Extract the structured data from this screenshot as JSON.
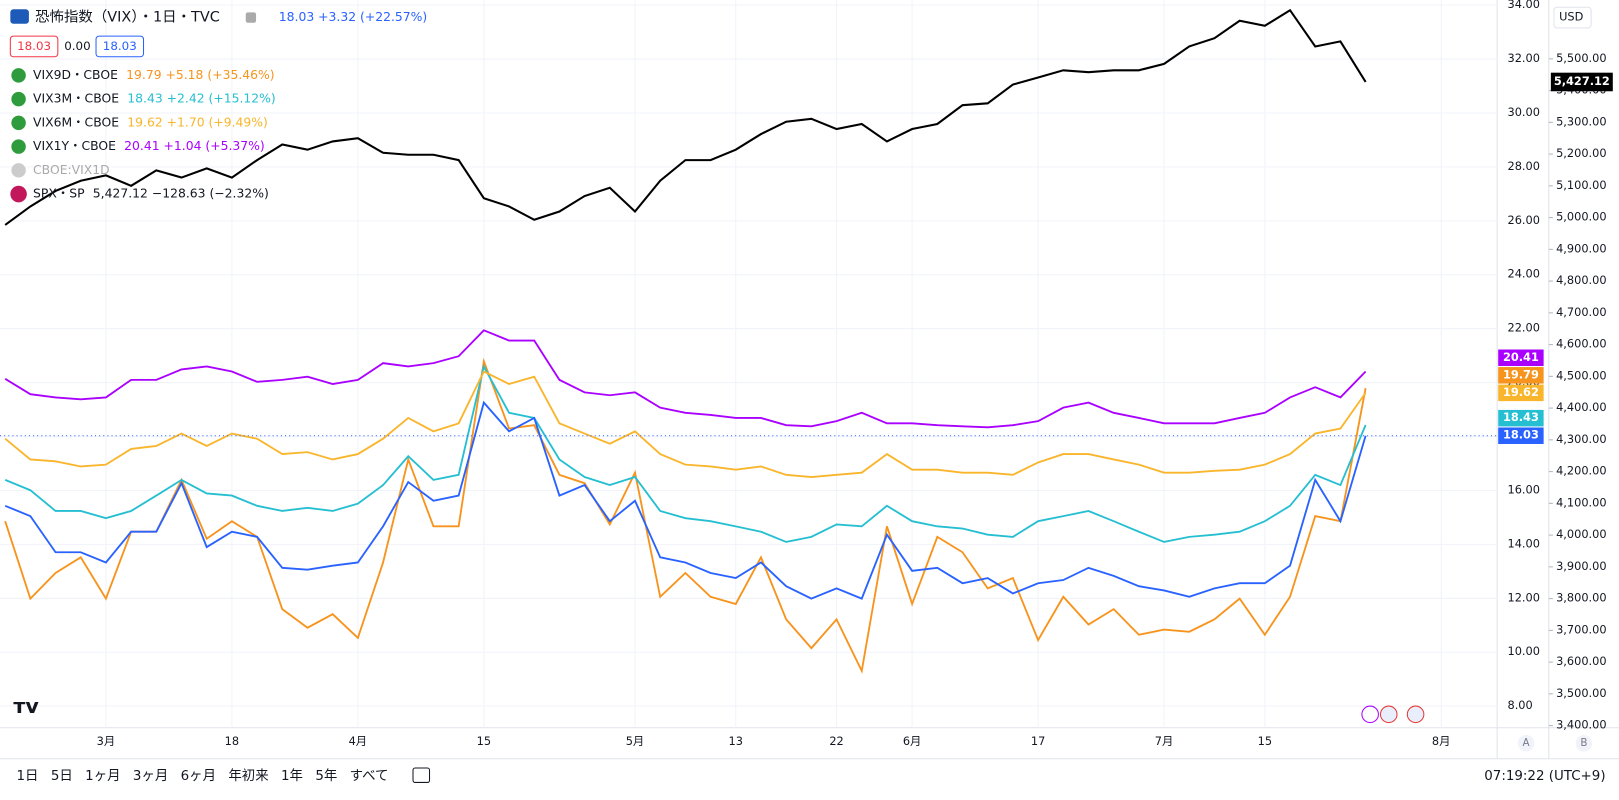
{
  "chart_data": {
    "type": "line",
    "categories": [
      null,
      null,
      null,
      null,
      "3月",
      null,
      null,
      null,
      null,
      "18",
      null,
      null,
      null,
      null,
      "4月",
      null,
      null,
      null,
      null,
      "15",
      null,
      null,
      null,
      null,
      null,
      "5月",
      null,
      null,
      null,
      "13",
      null,
      null,
      null,
      "22",
      null,
      null,
      "6月",
      null,
      null,
      null,
      null,
      "17",
      null,
      null,
      null,
      null,
      "7月",
      null,
      null,
      null,
      "15",
      null,
      null,
      null,
      null,
      null,
      null,
      "8月"
    ],
    "series": [
      {
        "name": "VIX9D・CBOE",
        "quote": "19.79 +5.18 (+35.46%)",
        "color": "#f7941d",
        "values": [
          14.86,
          11.99,
          12.94,
          13.52,
          11.99,
          14.47,
          14.47,
          16.39,
          14.21,
          14.86,
          14.28,
          11.6,
          10.91,
          11.41,
          10.53,
          13.33,
          17.15,
          14.67,
          14.67,
          20.79,
          18.3,
          18.42,
          16.58,
          16.27,
          14.74,
          16.66,
          12.06,
          12.94,
          12.06,
          11.79,
          13.52,
          11.22,
          10.15,
          11.22,
          9.31,
          14.67,
          11.79,
          14.28,
          13.71,
          12.37,
          12.75,
          10.45,
          12.06,
          11.03,
          11.6,
          10.65,
          10.84,
          10.76,
          11.22,
          11.99,
          10.65,
          12.06,
          15.05,
          14.86,
          19.79,
          null,
          null,
          null
        ]
      },
      {
        "name": "VIX3M・CBOE",
        "quote": "18.43 +2.42 (+15.12%)",
        "color": "#26bfd2",
        "values": [
          16.39,
          16.01,
          15.24,
          15.24,
          14.97,
          15.24,
          15.81,
          16.39,
          15.89,
          15.81,
          15.43,
          15.24,
          15.36,
          15.24,
          15.51,
          16.2,
          17.27,
          16.39,
          16.58,
          20.6,
          18.88,
          18.69,
          17.15,
          16.5,
          16.2,
          16.5,
          15.24,
          14.97,
          14.86,
          14.67,
          14.47,
          14.09,
          14.28,
          14.74,
          14.67,
          15.43,
          14.86,
          14.67,
          14.59,
          14.36,
          14.28,
          14.86,
          15.05,
          15.24,
          14.86,
          14.47,
          14.09,
          14.28,
          14.36,
          14.47,
          14.86,
          15.43,
          16.58,
          16.2,
          18.43,
          null,
          null,
          null
        ]
      },
      {
        "name": "VIX6M・CBOE",
        "quote": "19.62 +1.70 (+9.49%)",
        "color": "#f9b52c",
        "values": [
          17.92,
          17.15,
          17.08,
          16.89,
          16.96,
          17.54,
          17.65,
          18.11,
          17.65,
          18.11,
          17.92,
          17.35,
          17.42,
          17.15,
          17.35,
          17.92,
          18.69,
          18.19,
          18.49,
          20.41,
          19.95,
          20.22,
          18.49,
          18.11,
          17.73,
          18.19,
          17.35,
          16.96,
          16.89,
          16.77,
          16.89,
          16.58,
          16.5,
          16.58,
          16.66,
          17.35,
          16.77,
          16.77,
          16.66,
          16.66,
          16.58,
          17.04,
          17.35,
          17.35,
          17.15,
          16.96,
          16.66,
          16.66,
          16.73,
          16.77,
          16.96,
          17.35,
          18.11,
          18.3,
          19.62,
          null,
          null,
          null
        ]
      },
      {
        "name": "VIX1Y・CBOE",
        "quote": "20.41 +1.04 (+5.37%)",
        "color": "#aa00ff",
        "values": [
          20.14,
          19.57,
          19.45,
          19.38,
          19.45,
          20.1,
          20.1,
          20.49,
          20.6,
          20.41,
          20.03,
          20.1,
          20.22,
          19.95,
          20.1,
          20.72,
          20.6,
          20.72,
          20.98,
          21.94,
          21.56,
          21.56,
          20.1,
          19.64,
          19.53,
          19.64,
          19.07,
          18.88,
          18.8,
          18.69,
          18.69,
          18.42,
          18.38,
          18.57,
          18.88,
          18.49,
          18.49,
          18.42,
          18.38,
          18.34,
          18.42,
          18.57,
          19.07,
          19.26,
          18.88,
          18.69,
          18.49,
          18.49,
          18.49,
          18.69,
          18.88,
          19.45,
          19.83,
          19.45,
          20.41,
          null,
          null,
          null
        ]
      },
      {
        "name": "恐怖指数（VIX）・1日・TVC",
        "quote": "18.03 +3.32 (+22.57%)",
        "color": "#2962ff",
        "values": [
          15.43,
          15.05,
          13.71,
          13.71,
          13.33,
          14.47,
          14.47,
          16.27,
          13.9,
          14.47,
          14.28,
          13.13,
          13.06,
          13.21,
          13.33,
          14.67,
          16.31,
          15.62,
          15.81,
          19.26,
          18.19,
          18.69,
          15.81,
          16.2,
          14.86,
          15.62,
          13.52,
          13.33,
          12.94,
          12.75,
          13.33,
          12.45,
          11.99,
          12.37,
          11.99,
          14.36,
          13.02,
          13.13,
          12.56,
          12.75,
          12.18,
          12.56,
          12.68,
          13.13,
          12.83,
          12.45,
          12.29,
          12.06,
          12.37,
          12.56,
          12.56,
          13.21,
          16.39,
          14.86,
          18.03,
          null,
          null,
          null
        ]
      },
      {
        "name": "SPX・SP",
        "quote": "5,427.12 −128.63 (−2.32%)",
        "color": "#000000",
        "axis": "y2",
        "values": [
          4977,
          5035,
          5084,
          5116,
          5133,
          5100,
          5149,
          5126,
          5155,
          5126,
          5181,
          5230,
          5214,
          5240,
          5250,
          5204,
          5198,
          5198,
          5181,
          5061,
          5035,
          4993,
          5019,
          5068,
          5094,
          5019,
          5116,
          5181,
          5181,
          5214,
          5263,
          5302,
          5311,
          5279,
          5295,
          5240,
          5279,
          5295,
          5354,
          5360,
          5419,
          5441,
          5464,
          5458,
          5464,
          5464,
          5484,
          5539,
          5565,
          5620,
          5604,
          5653,
          5539,
          5555,
          5427.12,
          null,
          null,
          null
        ],
        "value_labels": [
          null,
          null,
          null,
          null,
          null,
          null,
          null,
          null,
          null,
          null,
          null,
          null,
          null,
          null,
          null,
          null,
          null,
          null,
          null,
          null,
          null,
          null,
          null,
          null,
          null,
          null,
          null,
          null,
          null,
          null,
          null,
          null,
          null,
          null,
          null,
          null,
          null,
          null,
          null,
          null,
          null,
          null,
          null,
          null,
          null,
          null,
          null,
          null,
          null,
          null,
          null,
          null,
          null,
          null,
          "5,427.12",
          null,
          null,
          null
        ]
      }
    ],
    "hidden_series": "CBOE:VIX1D",
    "price_boxes": {
      "sell": 18.03,
      "spread": "0.00",
      "buy": 18.03
    },
    "ylim": [
      7.2,
      34.19
    ],
    "yticks": [
      {
        "value": 8,
        "label": "8.00"
      },
      {
        "value": 10,
        "label": "10.00"
      },
      {
        "value": 12,
        "label": "12.00"
      },
      {
        "value": 14,
        "label": "14.00"
      },
      {
        "value": 16,
        "label": "16.00"
      },
      {
        "value": 18,
        "label": "18.00"
      },
      {
        "value": 20,
        "label": "20.00"
      },
      {
        "value": 22,
        "label": "22.00"
      },
      {
        "value": 24,
        "label": "24.00"
      },
      {
        "value": 26,
        "label": "26.00"
      },
      {
        "value": 28,
        "label": "28.00"
      },
      {
        "value": 30,
        "label": "30.00"
      },
      {
        "value": 32,
        "label": "32.00"
      },
      {
        "value": 34,
        "label": "34.00"
      }
    ],
    "y2lim": [
      3393.3,
      5685.3
    ],
    "y2ticks": [
      {
        "value": 3400,
        "label": "3,400.00"
      },
      {
        "value": 3500,
        "label": "3,500.00"
      },
      {
        "value": 3600,
        "label": "3,600.00"
      },
      {
        "value": 3700,
        "label": "3,700.00"
      },
      {
        "value": 3800,
        "label": "3,800.00"
      },
      {
        "value": 3900,
        "label": "3,900.00"
      },
      {
        "value": 4000,
        "label": "4,000.00"
      },
      {
        "value": 4100,
        "label": "4,100.00"
      },
      {
        "value": 4200,
        "label": "4,200.00"
      },
      {
        "value": 4300,
        "label": "4,300.00"
      },
      {
        "value": 4400,
        "label": "4,400.00"
      },
      {
        "value": 4500,
        "label": "4,500.00"
      },
      {
        "value": 4600,
        "label": "4,600.00"
      },
      {
        "value": 4700,
        "label": "4,700.00"
      },
      {
        "value": 4800,
        "label": "4,800.00"
      },
      {
        "value": 4900,
        "label": "4,900.00"
      },
      {
        "value": 5000,
        "label": "5,000.00"
      },
      {
        "value": 5100,
        "label": "5,100.00"
      },
      {
        "value": 5200,
        "label": "5,200.00"
      },
      {
        "value": 5300,
        "label": "5,300.00"
      },
      {
        "value": 5400,
        "label": "5,400.00"
      },
      {
        "value": 5500,
        "label": "5,500.00"
      }
    ],
    "grid": true,
    "currency": "USD",
    "scale_buttons": [
      "A",
      "B"
    ]
  },
  "toolbar": {
    "ranges": [
      "1日",
      "5日",
      "1ヶ月",
      "3ヶ月",
      "6ヶ月",
      "年初来",
      "1年",
      "5年",
      "すべて"
    ],
    "time": "07:19:22 (UTC+9)"
  }
}
